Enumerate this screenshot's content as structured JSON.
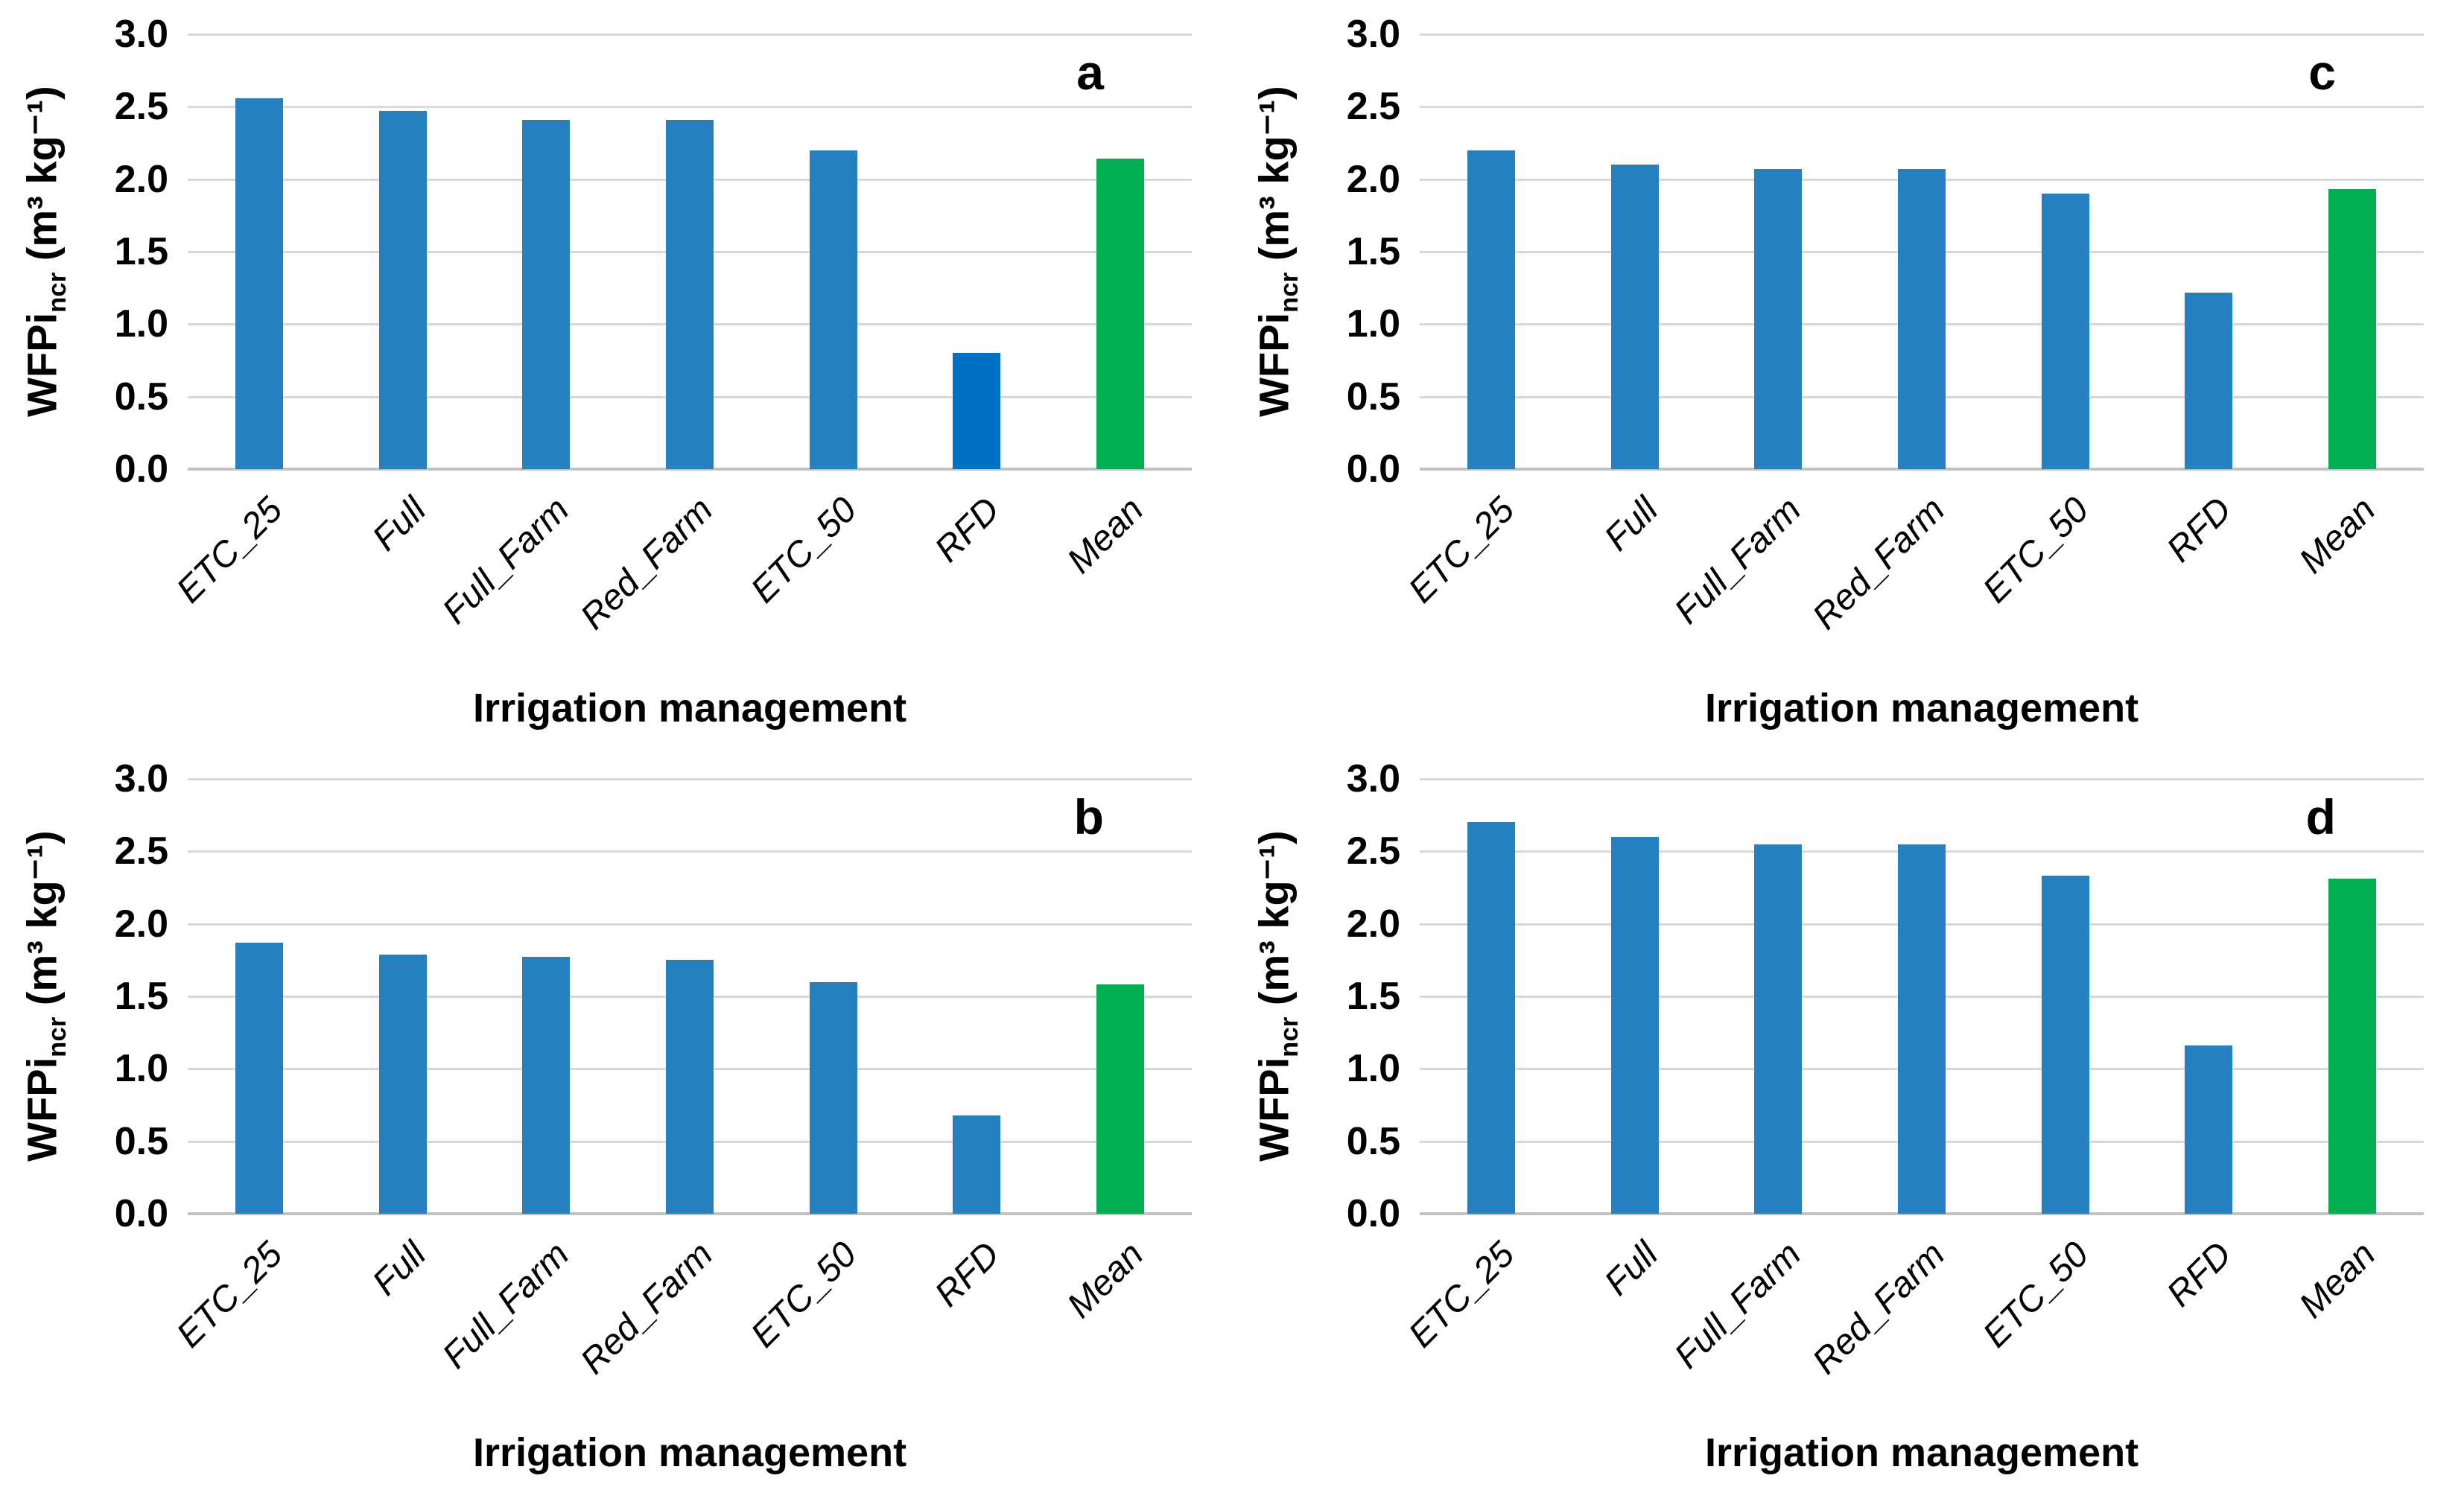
{
  "figure": {
    "x_axis_title": "Irrigation management",
    "y_axis_title": {
      "main": "WFPi",
      "sub": "ncr",
      "units": " (m³ kg⁻¹)"
    },
    "y_ticks": [
      "3.0",
      "2.5",
      "2.0",
      "1.5",
      "1.0",
      "0.5",
      "0.0"
    ],
    "y_max": 3.0
  },
  "colors": {
    "bar_blue": "#2480BE",
    "bar_blue_alt": "#0072C6",
    "bar_green": "#00B050",
    "gridline": "#D9D9D9",
    "axis_line": "#C2C2C2",
    "text": "#000000"
  },
  "chart_data": [
    {
      "type": "bar",
      "panel_label": "a",
      "position": "top-left",
      "categories": [
        "ETC_25",
        "Full",
        "Full_Farm",
        "Red_Farm",
        "ETC_50",
        "RFD",
        "Mean"
      ],
      "values": [
        2.56,
        2.47,
        2.41,
        2.41,
        2.2,
        0.8,
        2.14
      ],
      "bar_color_keys": [
        "bar_blue",
        "bar_blue",
        "bar_blue",
        "bar_blue",
        "bar_blue",
        "bar_blue_alt",
        "bar_green"
      ],
      "title": "",
      "xlabel": "Irrigation management",
      "ylabel": "WFPincr (m3 kg-1)",
      "ylim": [
        0,
        3
      ],
      "grid": true,
      "legend": "none"
    },
    {
      "type": "bar",
      "panel_label": "c",
      "position": "top-right",
      "categories": [
        "ETC_25",
        "Full",
        "Full_Farm",
        "Red_Farm",
        "ETC_50",
        "RFD",
        "Mean"
      ],
      "values": [
        2.2,
        2.1,
        2.07,
        2.07,
        1.9,
        1.22,
        1.93
      ],
      "bar_color_keys": [
        "bar_blue",
        "bar_blue",
        "bar_blue",
        "bar_blue",
        "bar_blue",
        "bar_blue",
        "bar_green"
      ],
      "title": "",
      "xlabel": "Irrigation management",
      "ylabel": "WFPincr (m3 kg-1)",
      "ylim": [
        0,
        3
      ],
      "grid": true,
      "legend": "none"
    },
    {
      "type": "bar",
      "panel_label": "b",
      "position": "bottom-left",
      "categories": [
        "ETC_25",
        "Full",
        "Full_Farm",
        "Red_Farm",
        "ETC_50",
        "RFD",
        "Mean"
      ],
      "values": [
        1.87,
        1.79,
        1.77,
        1.75,
        1.6,
        0.68,
        1.58
      ],
      "bar_color_keys": [
        "bar_blue",
        "bar_blue",
        "bar_blue",
        "bar_blue",
        "bar_blue",
        "bar_blue",
        "bar_green"
      ],
      "title": "",
      "xlabel": "Irrigation management",
      "ylabel": "WFPincr (m3 kg-1)",
      "ylim": [
        0,
        3
      ],
      "grid": true,
      "legend": "none"
    },
    {
      "type": "bar",
      "panel_label": "d",
      "position": "bottom-right",
      "categories": [
        "ETC_25",
        "Full",
        "Full_Farm",
        "Red_Farm",
        "ETC_50",
        "RFD",
        "Mean"
      ],
      "values": [
        2.7,
        2.6,
        2.55,
        2.55,
        2.33,
        1.16,
        2.31
      ],
      "bar_color_keys": [
        "bar_blue",
        "bar_blue",
        "bar_blue",
        "bar_blue",
        "bar_blue",
        "bar_blue",
        "bar_green"
      ],
      "title": "",
      "xlabel": "Irrigation management",
      "ylabel": "WFPincr (m3 kg-1)",
      "ylim": [
        0,
        3
      ],
      "grid": true,
      "legend": "none"
    }
  ]
}
